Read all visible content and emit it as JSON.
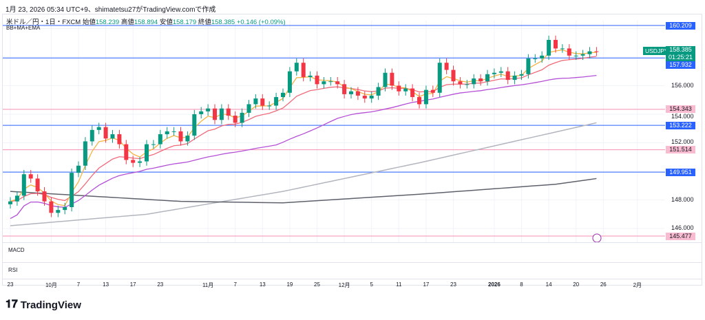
{
  "caption": "1月 23, 2026 05:34 UTC+9、shimatetsu27がTradingView.comで作成",
  "legend": {
    "symbol": "米ドル／円・1日・FXCM",
    "open_label": "始値",
    "open": "158.239",
    "high_label": "高値",
    "high": "158.894",
    "low_label": "安値",
    "low": "158.179",
    "close_label": "終値",
    "close": "158.385",
    "change": "+0.146 (+0.09%)"
  },
  "indicator_label": "BB+MA+EMA",
  "price_badge": {
    "symbol": "USDJPY",
    "price": "158.385",
    "countdown": "01:25:21"
  },
  "panes": {
    "macd": "MACD",
    "rsi": "RSI"
  },
  "brand": "TradingView",
  "colors": {
    "up": "#089981",
    "down": "#f23645",
    "blue": "#2962ff",
    "pink": "#f48fb1"
  },
  "chart_data": {
    "type": "candlestick",
    "price_range": [
      145.477,
      160.209
    ],
    "hlines": [
      {
        "price": 160.209,
        "label": "160.209",
        "style": "blue"
      },
      {
        "price": 157.932,
        "label": "157.932",
        "style": "blue"
      },
      {
        "price": 154.343,
        "label": "154.343",
        "style": "pink"
      },
      {
        "price": 153.222,
        "label": "153.222",
        "style": "blue"
      },
      {
        "price": 151.514,
        "label": "151.514",
        "style": "pink"
      },
      {
        "price": 149.951,
        "label": "149.951",
        "style": "blue"
      },
      {
        "price": 145.477,
        "label": "145.477",
        "style": "pink"
      }
    ],
    "price_ticks": [
      {
        "p": 156,
        "label": "156.000"
      },
      {
        "p": 154,
        "label": "154.000"
      },
      {
        "p": 152,
        "label": "152.000"
      },
      {
        "p": 148,
        "label": "148.000"
      },
      {
        "p": 146,
        "label": "146.000"
      }
    ],
    "time_ticks": [
      {
        "i": 0,
        "label": "23"
      },
      {
        "i": 6,
        "label": "10月"
      },
      {
        "i": 10,
        "label": "7"
      },
      {
        "i": 14,
        "label": "13"
      },
      {
        "i": 18,
        "label": "17"
      },
      {
        "i": 22,
        "label": "23"
      },
      {
        "i": 29,
        "label": "11月"
      },
      {
        "i": 33,
        "label": "7"
      },
      {
        "i": 37,
        "label": "13"
      },
      {
        "i": 41,
        "label": "19"
      },
      {
        "i": 45,
        "label": "25"
      },
      {
        "i": 49,
        "label": "12月"
      },
      {
        "i": 53,
        "label": "5"
      },
      {
        "i": 57,
        "label": "11"
      },
      {
        "i": 61,
        "label": "17"
      },
      {
        "i": 65,
        "label": "23"
      },
      {
        "i": 71,
        "label": "2026"
      },
      {
        "i": 75,
        "label": "8"
      },
      {
        "i": 79,
        "label": "14"
      },
      {
        "i": 83,
        "label": "20"
      },
      {
        "i": 87,
        "label": "26"
      },
      {
        "i": 92,
        "label": "2月"
      }
    ],
    "closes": [
      147.9,
      148.3,
      149.8,
      149.5,
      148.6,
      147.9,
      147.1,
      147.3,
      147.5,
      149.9,
      150.4,
      152.1,
      152.9,
      153.1,
      152.3,
      152.6,
      151.9,
      150.8,
      150.6,
      150.7,
      151.9,
      151.9,
      152.6,
      152.8,
      152.8,
      152.1,
      152.5,
      154.0,
      154.2,
      154.4,
      153.6,
      154.4,
      153.9,
      153.4,
      154.1,
      154.7,
      155.1,
      154.6,
      154.6,
      155.2,
      155.5,
      157.0,
      157.6,
      156.6,
      156.7,
      156.1,
      156.3,
      156.3,
      156.1,
      155.4,
      155.6,
      155.3,
      155.1,
      155.3,
      155.9,
      156.9,
      156.0,
      155.6,
      155.8,
      155.2,
      154.7,
      155.7,
      155.5,
      157.6,
      157.1,
      156.3,
      156.1,
      156.1,
      156.5,
      156.3,
      156.8,
      156.9,
      157.0,
      156.4,
      156.7,
      156.8,
      157.9,
      157.9,
      158.1,
      159.2,
      158.6,
      158.6,
      158.1,
      158.1,
      158.2,
      158.4,
      158.385
    ],
    "long_lines": [
      {
        "name": "sma-light",
        "color": "#b2b5be",
        "points": [
          [
            0,
            146.2
          ],
          [
            20,
            147.0
          ],
          [
            40,
            148.6
          ],
          [
            60,
            150.6
          ],
          [
            86,
            153.4
          ]
        ]
      },
      {
        "name": "sma-dark",
        "color": "#5d606b",
        "points": [
          [
            0,
            148.6
          ],
          [
            25,
            147.9
          ],
          [
            40,
            147.8
          ],
          [
            60,
            148.4
          ],
          [
            80,
            149.1
          ],
          [
            86,
            149.5
          ]
        ]
      }
    ]
  }
}
